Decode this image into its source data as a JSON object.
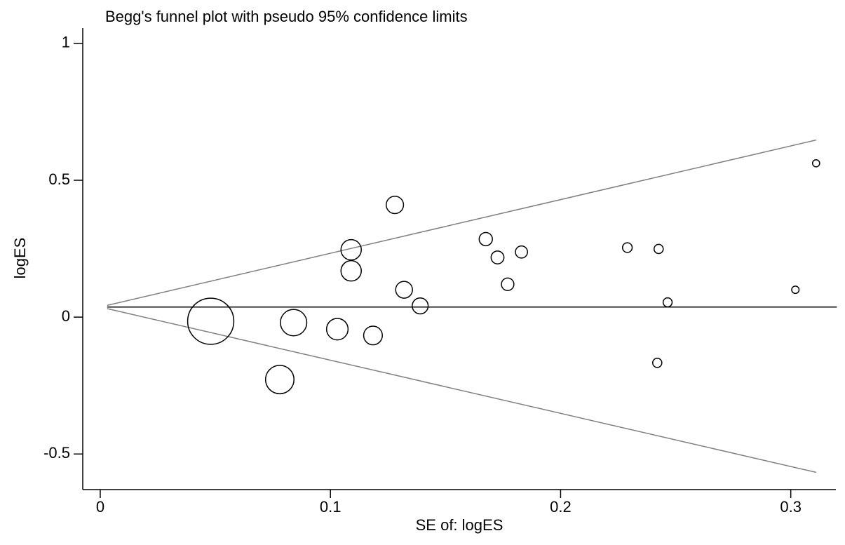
{
  "chart_data": {
    "type": "scatter",
    "title": "Begg's funnel plot with pseudo 95% confidence limits",
    "x_label": "SE of: logES",
    "y_label": "logES",
    "x": [
      0.048,
      0.078,
      0.084,
      0.103,
      0.109,
      0.109,
      0.1185,
      0.128,
      0.132,
      0.139,
      0.1675,
      0.1726,
      0.177,
      0.183,
      0.229,
      0.2426,
      0.242,
      0.2465,
      0.302,
      0.311
    ],
    "values": [
      -0.015,
      -0.228,
      -0.02,
      -0.044,
      0.246,
      0.169,
      -0.067,
      0.41,
      0.1,
      0.041,
      0.285,
      0.218,
      0.12,
      0.238,
      0.254,
      0.249,
      -0.167,
      0.054,
      0.1,
      0.562
    ],
    "color": "#000000",
    "lines": [
      {
        "x": [
          0.003,
          0.32
        ],
        "values": [
          0.037,
          0.037
        ],
        "color": "#000000"
      },
      {
        "x": [
          0.003,
          0.311
        ],
        "values": [
          0.043,
          0.647
        ],
        "color": "#808080"
      },
      {
        "x": [
          0.003,
          0.311
        ],
        "values": [
          0.031,
          -0.567
        ],
        "color": "#808080"
      }
    ],
    "xlim": [
      -0.0076,
      0.3196
    ],
    "ylim": [
      -0.63,
      1.056
    ],
    "xticks": [
      0,
      0.1,
      0.2,
      0.3
    ],
    "yticks": [
      -0.5,
      0,
      0.5,
      1
    ],
    "grid": false
  }
}
